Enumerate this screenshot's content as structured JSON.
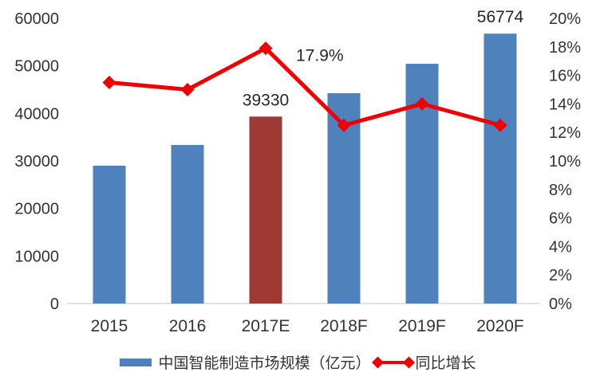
{
  "chart_data": {
    "type": "combo",
    "categories": [
      "2015",
      "2016",
      "2017E",
      "2018F",
      "2019F",
      "2020F"
    ],
    "series": [
      {
        "name": "中国智能制造市场规模（亿元）",
        "type": "bar",
        "axis": "left",
        "values": [
          29000,
          33360,
          39330,
          44250,
          50440,
          56774
        ],
        "color": "#4F81BD",
        "highlight": {
          "index": 2,
          "color": "#9E3A33"
        }
      },
      {
        "name": "同比增长",
        "type": "line",
        "axis": "right",
        "values": [
          15.5,
          15.0,
          17.9,
          12.5,
          14.0,
          12.5
        ],
        "unit": "%",
        "color": "#F00000",
        "marker": "diamond"
      }
    ],
    "left_axis": {
      "min": 0,
      "max": 60000,
      "step": 10000,
      "ticks": [
        "0",
        "10000",
        "20000",
        "30000",
        "40000",
        "50000",
        "60000"
      ]
    },
    "right_axis": {
      "min": 0,
      "max": 20,
      "step": 2,
      "ticks": [
        "0%",
        "2%",
        "4%",
        "6%",
        "8%",
        "10%",
        "12%",
        "14%",
        "16%",
        "18%",
        "20%"
      ]
    },
    "annotations": [
      {
        "text": "39330",
        "target": "bar",
        "index": 2
      },
      {
        "text": "17.9%",
        "target": "line",
        "index": 2
      },
      {
        "text": "56774",
        "target": "bar",
        "index": 5
      }
    ],
    "grid": false,
    "legend_position": "bottom",
    "axis_line_color": "#D9D9D9",
    "text_color": "#333333"
  }
}
